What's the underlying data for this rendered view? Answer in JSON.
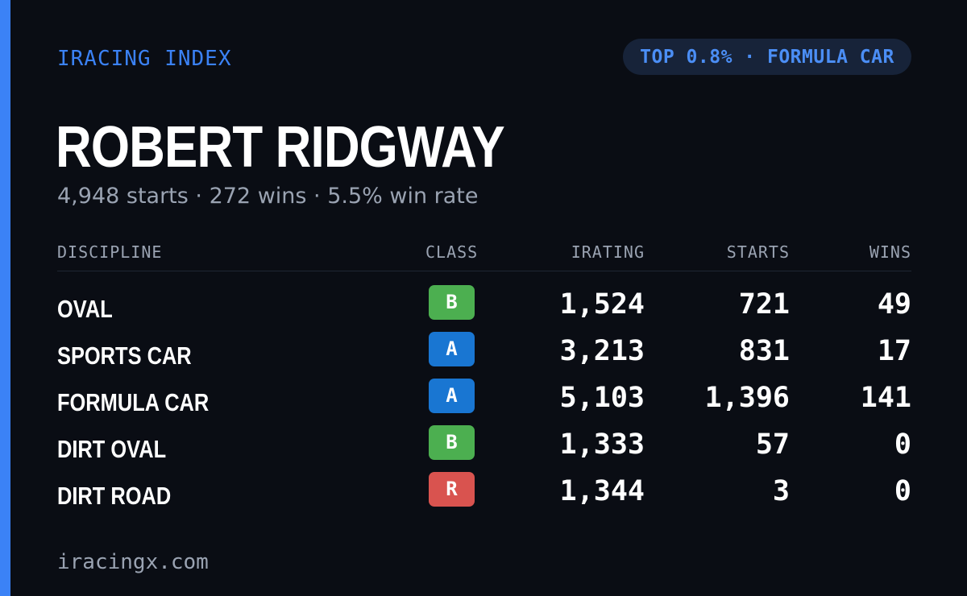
{
  "brand": "IRACING INDEX",
  "rank_badge": "TOP 0.8% · FORMULA CAR",
  "driver": {
    "name": "ROBERT RIDGWAY",
    "summary": "4,948 starts · 272 wins · 5.5% win rate"
  },
  "table": {
    "headers": {
      "discipline": "DISCIPLINE",
      "class": "CLASS",
      "irating": "IRATING",
      "starts": "STARTS",
      "wins": "WINS"
    },
    "rows": [
      {
        "discipline": "OVAL",
        "class": "B",
        "class_color": "#4caf50",
        "irating": "1,524",
        "starts": "721",
        "wins": "49"
      },
      {
        "discipline": "SPORTS CAR",
        "class": "A",
        "class_color": "#1976d2",
        "irating": "3,213",
        "starts": "831",
        "wins": "17"
      },
      {
        "discipline": "FORMULA CAR",
        "class": "A",
        "class_color": "#1976d2",
        "irating": "5,103",
        "starts": "1,396",
        "wins": "141"
      },
      {
        "discipline": "DIRT OVAL",
        "class": "B",
        "class_color": "#4caf50",
        "irating": "1,333",
        "starts": "57",
        "wins": "0"
      },
      {
        "discipline": "DIRT ROAD",
        "class": "R",
        "class_color": "#d9534f",
        "irating": "1,344",
        "starts": "3",
        "wins": "0"
      }
    ]
  },
  "footer": "iracingx.com",
  "colors": {
    "accent": "#3b82f6",
    "background": "#0a0d14",
    "pill_background": "#172339",
    "muted_text": "#9aa3b2"
  }
}
